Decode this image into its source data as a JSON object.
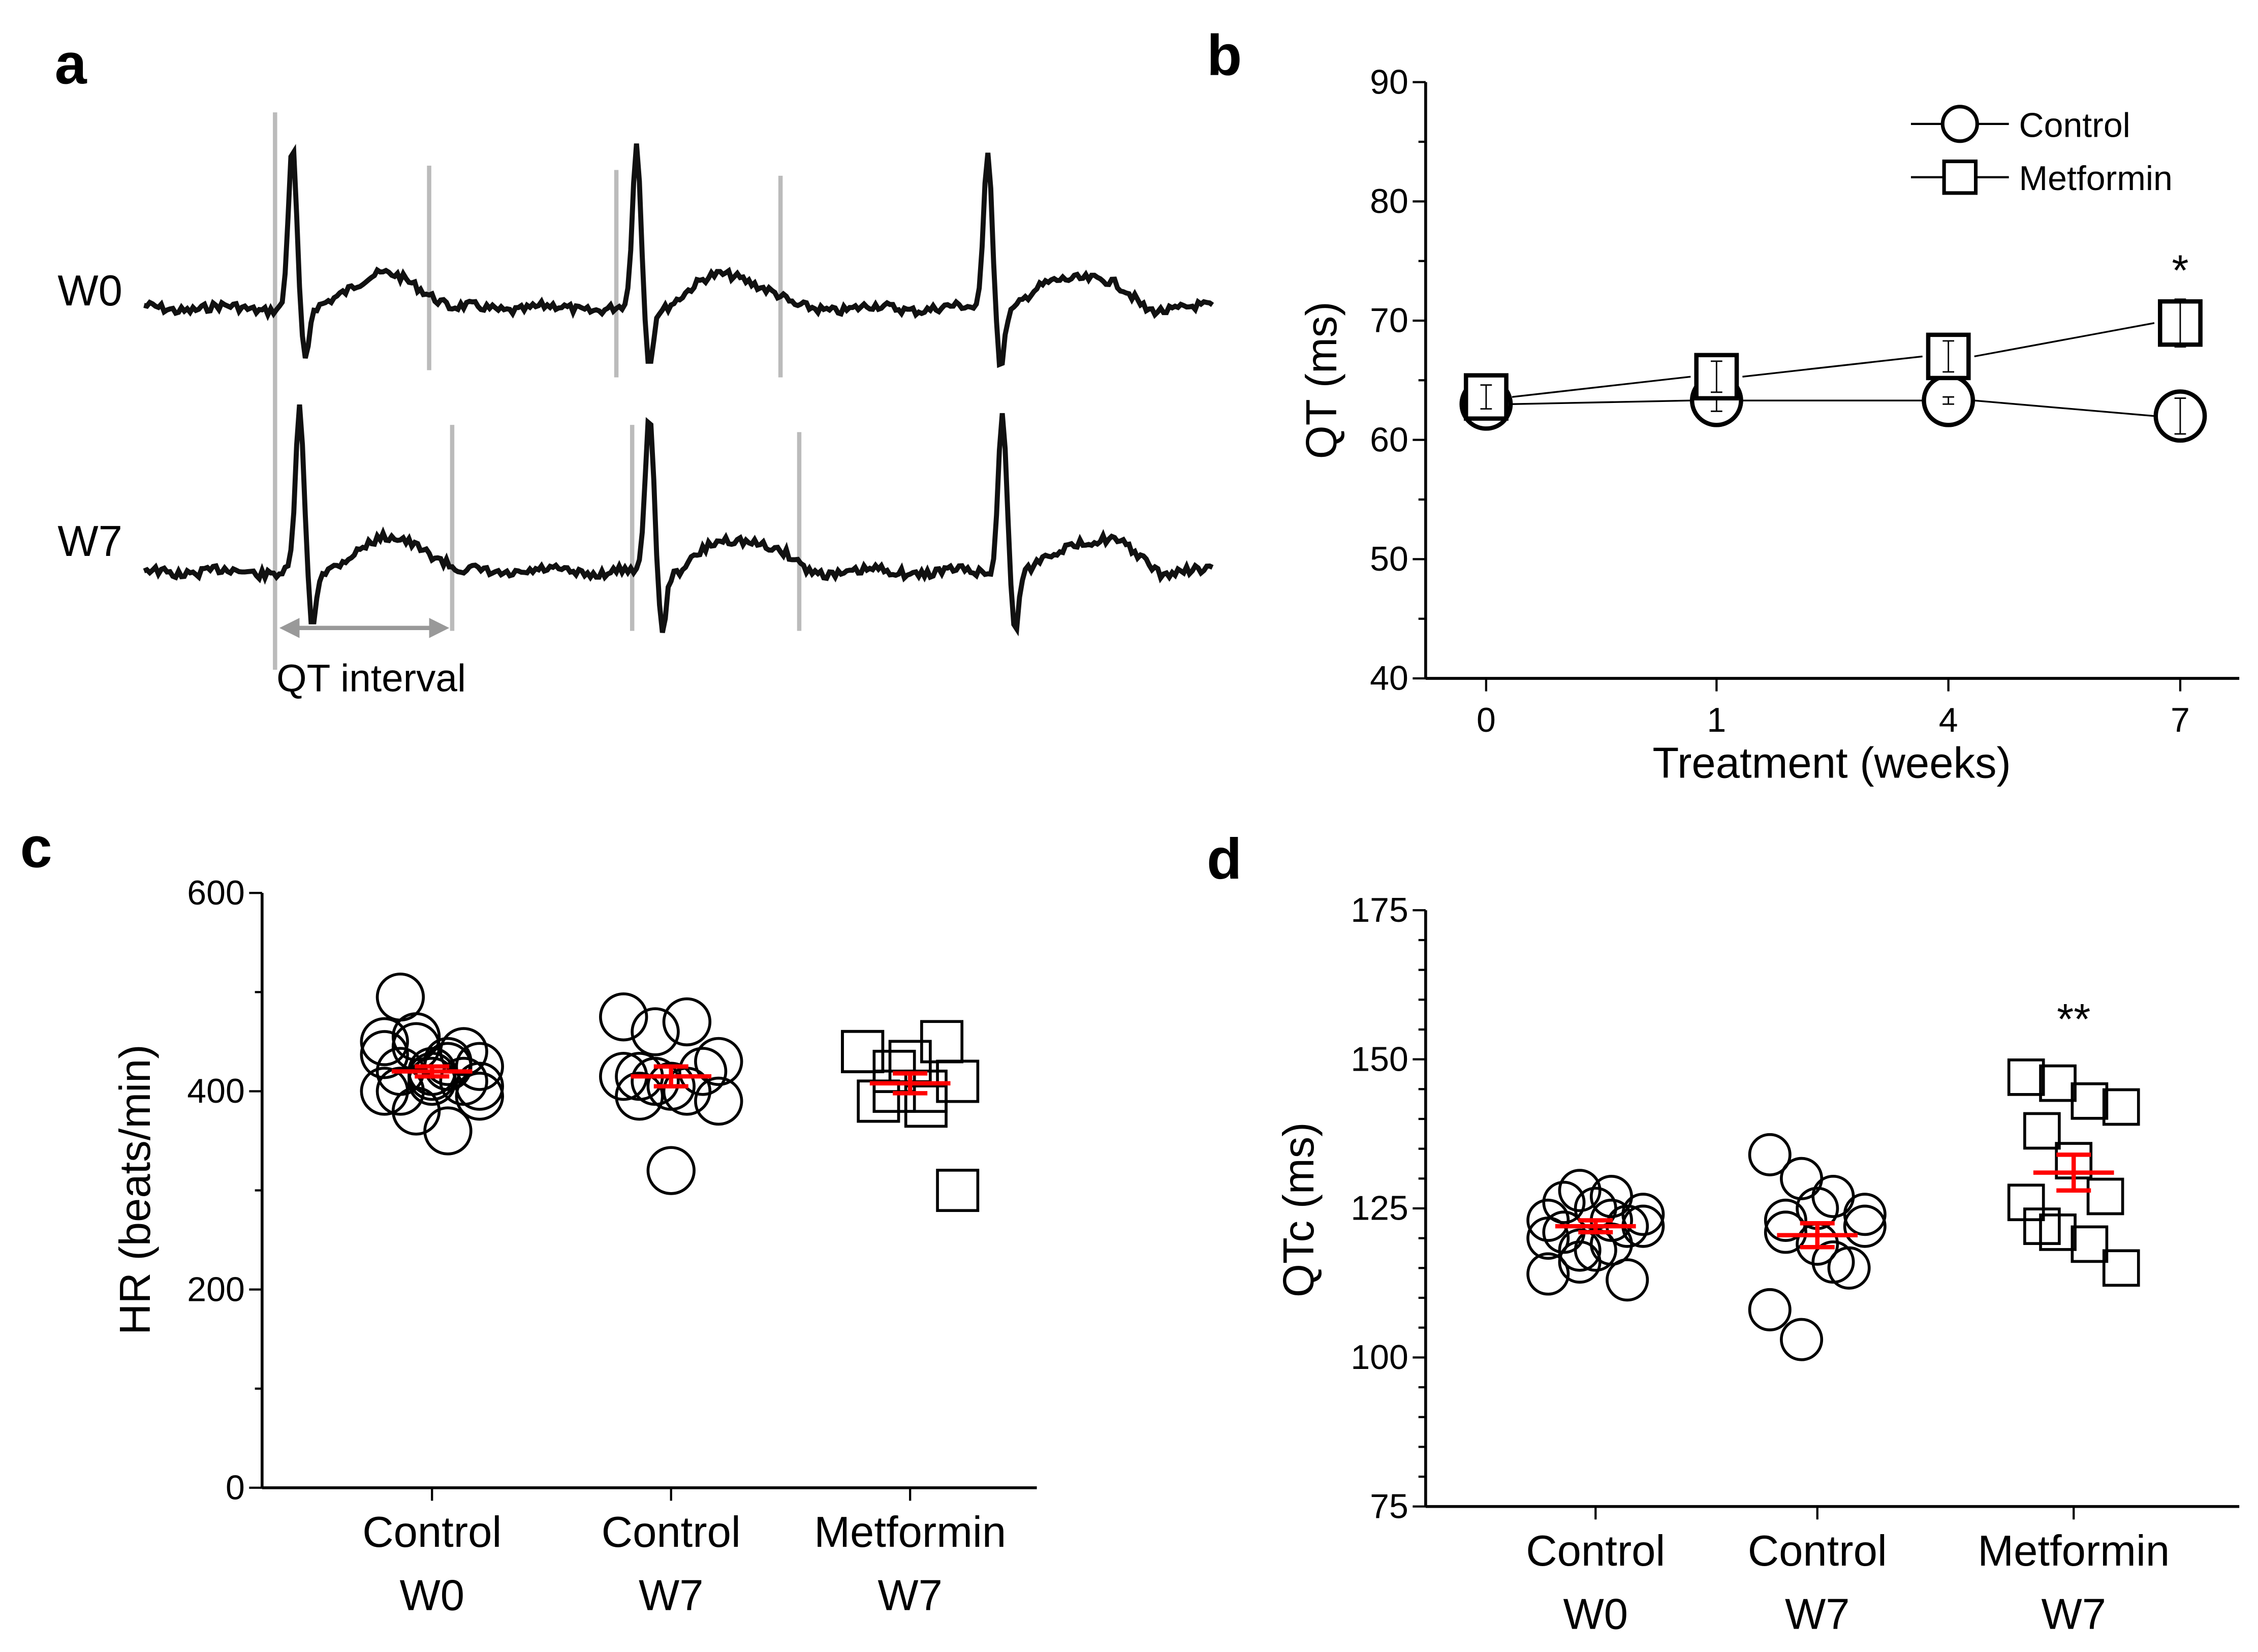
{
  "chart_data": [
    {
      "panel": "a",
      "type": "line",
      "title": "",
      "traces": [
        "W0",
        "W7"
      ],
      "annotation": "QT interval"
    },
    {
      "panel": "b",
      "type": "line",
      "xlabel": "Treatment (weeks)",
      "ylabel": "QT (ms)",
      "categories": [
        "0",
        "1",
        "4",
        "7"
      ],
      "ylim": [
        40,
        90
      ],
      "yticks": [
        40,
        50,
        60,
        70,
        80,
        90
      ],
      "legend_position": "top-right",
      "series": [
        {
          "name": "Control",
          "marker": "circle",
          "values": [
            63.0,
            63.3,
            63.3,
            62.0
          ],
          "err": [
            0.8,
            0.9,
            0.3,
            1.5
          ]
        },
        {
          "name": "Metformin",
          "marker": "square",
          "values": [
            63.6,
            65.3,
            67.0,
            69.8
          ],
          "err": [
            1.0,
            1.3,
            1.3,
            2.0
          ]
        }
      ],
      "annotations": [
        {
          "category": "7",
          "text": "*"
        }
      ]
    },
    {
      "panel": "c",
      "type": "scatter",
      "ylabel": "HR (beats/min)",
      "ylim": [
        0,
        600
      ],
      "yticks": [
        0,
        200,
        400,
        600
      ],
      "groups": [
        {
          "label1": "Control",
          "label2": "W0",
          "marker": "circle",
          "mean": 420,
          "sem": 5,
          "values": [
            437,
            445,
            430,
            425,
            420,
            415,
            410,
            400,
            380,
            360,
            395,
            400,
            410,
            440,
            450,
            455,
            425,
            405,
            495,
            420
          ]
        },
        {
          "label1": "Control",
          "label2": "W7",
          "marker": "circle",
          "mean": 415,
          "sem": 10,
          "values": [
            415,
            410,
            400,
            390,
            395,
            405,
            420,
            475,
            460,
            470,
            430,
            415,
            320
          ]
        },
        {
          "label1": "Metformin",
          "label2": "W7",
          "marker": "square",
          "mean": 408,
          "sem": 10,
          "values": [
            440,
            420,
            400,
            410,
            390,
            430,
            450,
            440,
            400,
            385,
            300
          ]
        }
      ]
    },
    {
      "panel": "d",
      "type": "scatter",
      "ylabel": "QTc (ms)",
      "ylim": [
        75,
        175
      ],
      "yticks": [
        75,
        100,
        125,
        150,
        175
      ],
      "groups": [
        {
          "label1": "Control",
          "label2": "W0",
          "marker": "circle",
          "mean": 122,
          "sem": 1,
          "values": [
            123,
            128,
            127,
            124,
            121,
            118,
            113,
            114,
            116,
            119,
            122,
            126,
            125,
            122,
            120,
            118,
            123
          ]
        },
        {
          "label1": "Control",
          "label2": "W7",
          "marker": "circle",
          "mean": 120.5,
          "sem": 2,
          "values": [
            134,
            130,
            127,
            124,
            121,
            119,
            115,
            108,
            103,
            116,
            122,
            123,
            125
          ]
        },
        {
          "label1": "Metformin",
          "label2": "W7",
          "marker": "square",
          "mean": 131,
          "sem": 3,
          "values": [
            147,
            146,
            143,
            142,
            138,
            133,
            127,
            126,
            121,
            119,
            115,
            122
          ]
        }
      ],
      "annotations": [
        {
          "group": 2,
          "text": "**"
        }
      ]
    }
  ],
  "panels": {
    "a": "a",
    "b": "b",
    "c": "c",
    "d": "d"
  }
}
